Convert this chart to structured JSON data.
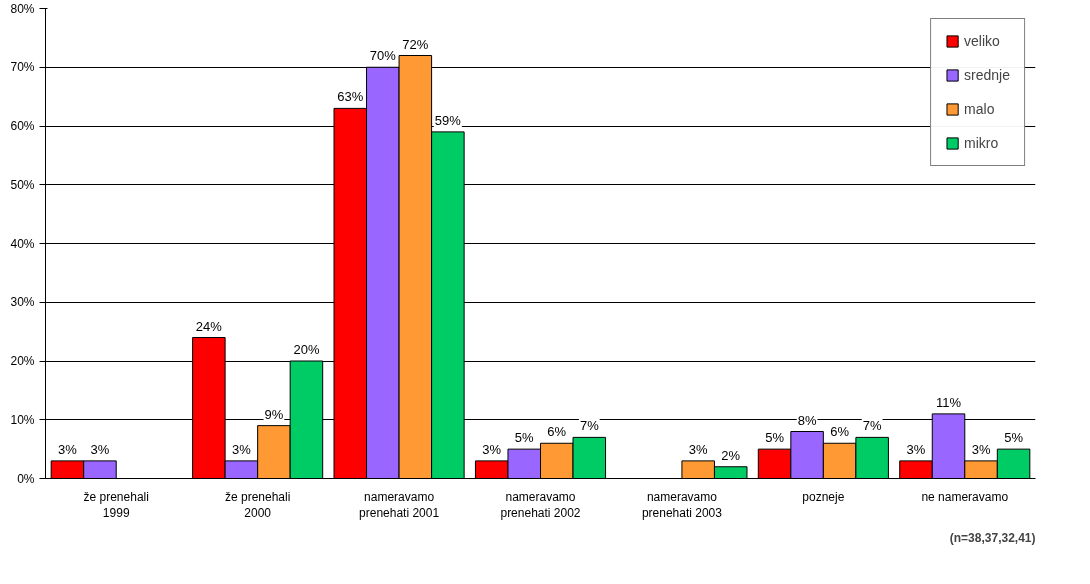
{
  "chart_data": {
    "type": "bar",
    "categories": [
      "že prenehali\n1999",
      "že prenehali\n2000",
      "nameravamo\nprenehati 2001",
      "nameravamo\nprenehati 2002",
      "nameravamo\nprenehati 2003",
      "pozneje",
      "ne nameravamo"
    ],
    "series": [
      {
        "name": "veliko",
        "color": "#ff0000",
        "values": [
          3,
          24,
          63,
          3,
          null,
          5,
          3
        ],
        "value_labels": [
          "3%",
          "24%",
          "63%",
          "3%",
          null,
          "5%",
          "3%"
        ]
      },
      {
        "name": "srednje",
        "color": "#9966ff",
        "values": [
          3,
          3,
          70,
          5,
          null,
          8,
          11
        ],
        "value_labels": [
          "3%",
          "3%",
          "70%",
          "5%",
          null,
          "8%",
          "11%"
        ]
      },
      {
        "name": "malo",
        "color": "#ff9933",
        "values": [
          null,
          9,
          72,
          6,
          3,
          6,
          3
        ],
        "value_labels": [
          null,
          "9%",
          "72%",
          "6%",
          "3%",
          "6%",
          "3%"
        ]
      },
      {
        "name": "mikro",
        "color": "#00cc66",
        "values": [
          null,
          20,
          59,
          7,
          2,
          7,
          5
        ],
        "value_labels": [
          null,
          "20%",
          "59%",
          "7%",
          "2%",
          "7%",
          "5%"
        ]
      }
    ],
    "ylim": [
      0,
      80
    ],
    "yticks": [
      {
        "value": 0,
        "label": "0%"
      },
      {
        "value": 10,
        "label": "10%"
      },
      {
        "value": 20,
        "label": "20%"
      },
      {
        "value": 30,
        "label": "30%"
      },
      {
        "value": 40,
        "label": "40%"
      },
      {
        "value": 50,
        "label": "50%"
      },
      {
        "value": 60,
        "label": "60%"
      },
      {
        "value": 70,
        "label": "70%"
      },
      {
        "value": 80,
        "label": "80%"
      }
    ],
    "grid": "y",
    "legend": "right",
    "annotations": [
      "(n=38,37,32,41)"
    ]
  }
}
